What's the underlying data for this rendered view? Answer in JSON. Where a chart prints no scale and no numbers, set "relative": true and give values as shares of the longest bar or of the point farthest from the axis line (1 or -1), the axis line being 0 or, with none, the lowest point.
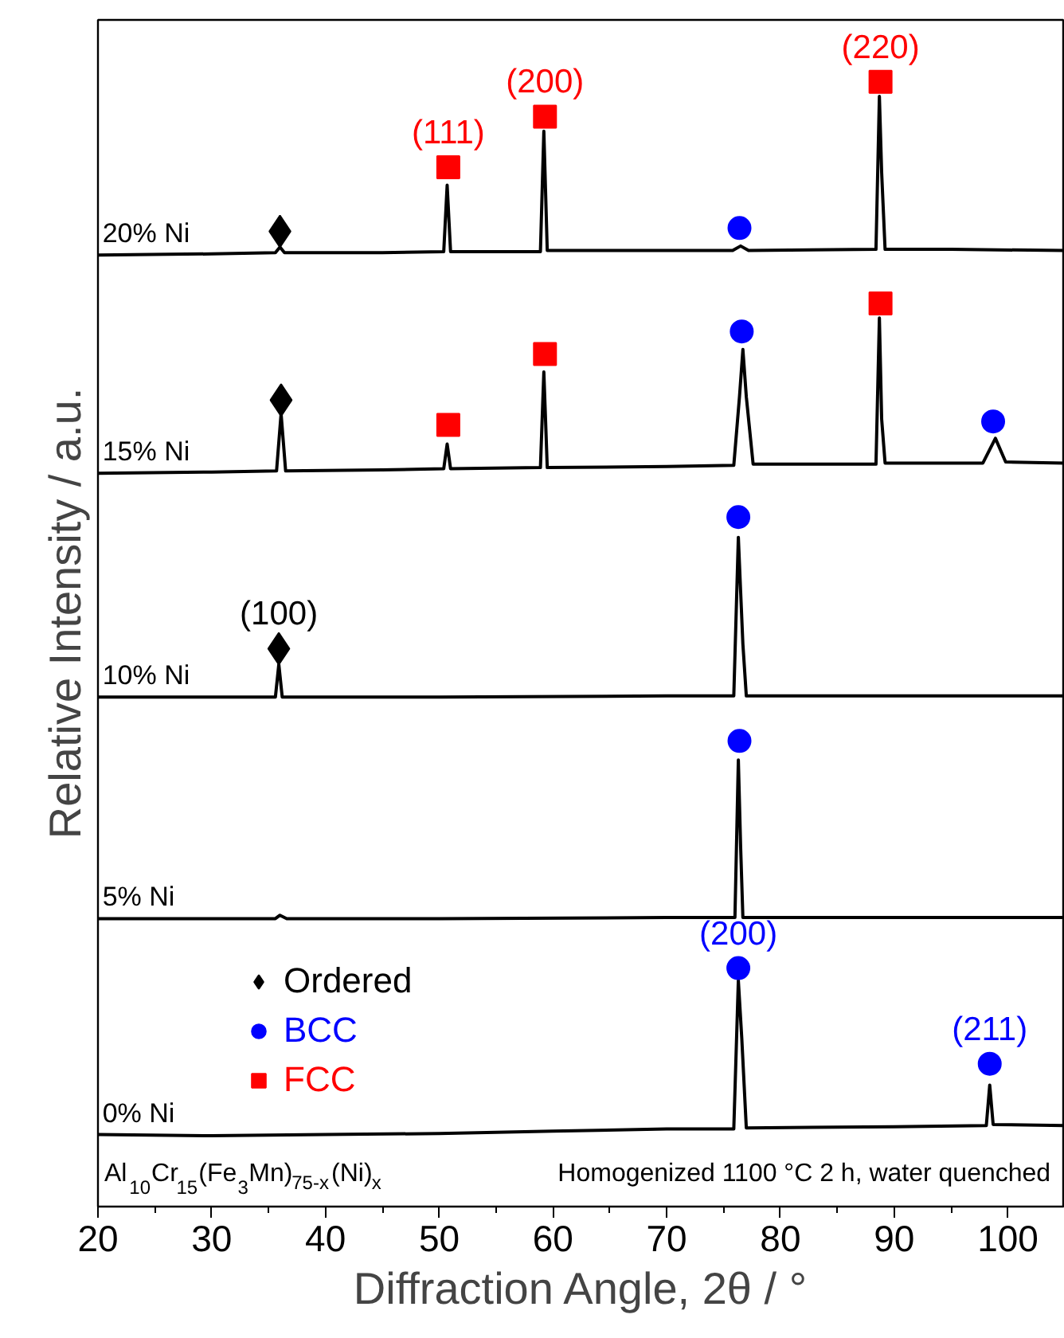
{
  "chart_data": {
    "type": "line",
    "relative": true,
    "xlabel": "Diffraction Angle, 2θ / °",
    "ylabel": "Relative Intensity / a.u.",
    "xlim": [
      20,
      105
    ],
    "xticks": [
      20,
      {
        "value": 25,
        "label": null
      },
      30,
      {
        "value": 35,
        "label": null
      },
      40,
      {
        "value": 45,
        "label": null
      },
      50,
      {
        "value": 55,
        "label": null
      },
      60,
      {
        "value": 65,
        "label": null
      },
      70,
      {
        "value": 75,
        "label": null
      },
      80,
      {
        "value": 85,
        "label": null
      },
      90,
      {
        "value": 95,
        "label": null
      },
      100
    ],
    "tick_labels": "x",
    "grid": false,
    "legend": "bottom left",
    "line_style": "solid",
    "series": [
      {
        "name": "20% Ni",
        "color": "#000000",
        "x": [
          20,
          30,
          35.6,
          36.0,
          36.4,
          45,
          50.4,
          50.7,
          51.0,
          58.9,
          59.2,
          59.5,
          70,
          75.8,
          76.5,
          77.2,
          88.4,
          88.7,
          88.9,
          89.2,
          95,
          105
        ],
        "values": [
          0.846,
          0.847,
          0.848,
          0.853,
          0.848,
          0.848,
          0.849,
          0.908,
          0.849,
          0.849,
          0.956,
          0.85,
          0.85,
          0.85,
          0.854,
          0.85,
          0.851,
          0.987,
          0.919,
          0.851,
          0.851,
          0.85
        ]
      },
      {
        "name": "15% Ni",
        "color": "#000000",
        "x": [
          20,
          30,
          35.7,
          36.1,
          36.5,
          45,
          50.4,
          50.7,
          51.0,
          58.9,
          59.2,
          59.5,
          70,
          75.9,
          76.4,
          76.7,
          77.0,
          77.6,
          88.4,
          88.7,
          88.9,
          89.2,
          97.8,
          98.9,
          99.8,
          105
        ],
        "values": [
          0.652,
          0.653,
          0.654,
          0.705,
          0.654,
          0.655,
          0.656,
          0.678,
          0.656,
          0.657,
          0.742,
          0.657,
          0.658,
          0.659,
          0.72,
          0.762,
          0.72,
          0.66,
          0.66,
          0.79,
          0.7,
          0.661,
          0.661,
          0.683,
          0.662,
          0.661
        ]
      },
      {
        "name": "10% Ni",
        "color": "#000000",
        "x": [
          20,
          30,
          35.6,
          35.9,
          36.2,
          50,
          70,
          75.9,
          76.3,
          76.5,
          76.7,
          77.0,
          90,
          105
        ],
        "values": [
          0.453,
          0.453,
          0.453,
          0.482,
          0.453,
          0.453,
          0.454,
          0.454,
          0.595,
          0.547,
          0.5,
          0.454,
          0.454,
          0.454
        ]
      },
      {
        "name": "5% Ni",
        "color": "#000000",
        "x": [
          20,
          30,
          35.6,
          36.0,
          36.6,
          50,
          70,
          76.0,
          76.3,
          76.5,
          76.7,
          90,
          105
        ],
        "values": [
          0.256,
          0.256,
          0.256,
          0.259,
          0.256,
          0.256,
          0.257,
          0.257,
          0.397,
          0.32,
          0.257,
          0.257,
          0.257
        ]
      },
      {
        "name": "0% Ni",
        "color": "#000000",
        "x": [
          20,
          30,
          40,
          50,
          60,
          70,
          75.9,
          76.3,
          76.6,
          77.0,
          90,
          98.1,
          98.4,
          98.7,
          105
        ],
        "values": [
          0.064,
          0.063,
          0.064,
          0.065,
          0.067,
          0.069,
          0.069,
          0.201,
          0.15,
          0.07,
          0.071,
          0.072,
          0.108,
          0.073,
          0.072
        ]
      },
      {
        "name": "Ordered",
        "color": "#000000",
        "type": "scatter",
        "marker": "diamond",
        "x": [
          36.0,
          36.1,
          35.9
        ],
        "values": [
          0.867,
          0.717,
          0.496
        ]
      },
      {
        "name": "BCC",
        "color": "#0000ff",
        "type": "scatter",
        "marker": "circle",
        "x": [
          76.4,
          76.6,
          98.7,
          76.3,
          76.4,
          76.3,
          98.4
        ],
        "values": [
          0.87,
          0.778,
          0.698,
          0.613,
          0.414,
          0.212,
          0.127
        ]
      },
      {
        "name": "FCC",
        "color": "#ff0000",
        "type": "scatter",
        "marker": "square",
        "x": [
          50.8,
          59.3,
          88.8,
          50.8,
          59.3,
          88.8
        ],
        "values": [
          0.924,
          0.969,
          1.0,
          0.695,
          0.758,
          0.803
        ]
      }
    ],
    "annotations": [
      {
        "text": "(111)",
        "x": 50.8,
        "y": 0.924
      },
      {
        "text": "(200)",
        "x": 59.3,
        "y": 0.969
      },
      {
        "text": "(220)",
        "x": 88.8,
        "y": 1.0
      },
      {
        "text": "(100)",
        "x": 35.9,
        "y": 0.496
      },
      {
        "text": "(200)",
        "x": 76.3,
        "y": 0.212
      },
      {
        "text": "(211)",
        "x": 98.4,
        "y": 0.127
      },
      "Al$_{10}$Cr$_{15}$(Fe$_{3}$Mn)$_{75-x}$(Ni)$_{x}$",
      "Homogenized 1100 °C 2 h, water quenched"
    ]
  }
}
